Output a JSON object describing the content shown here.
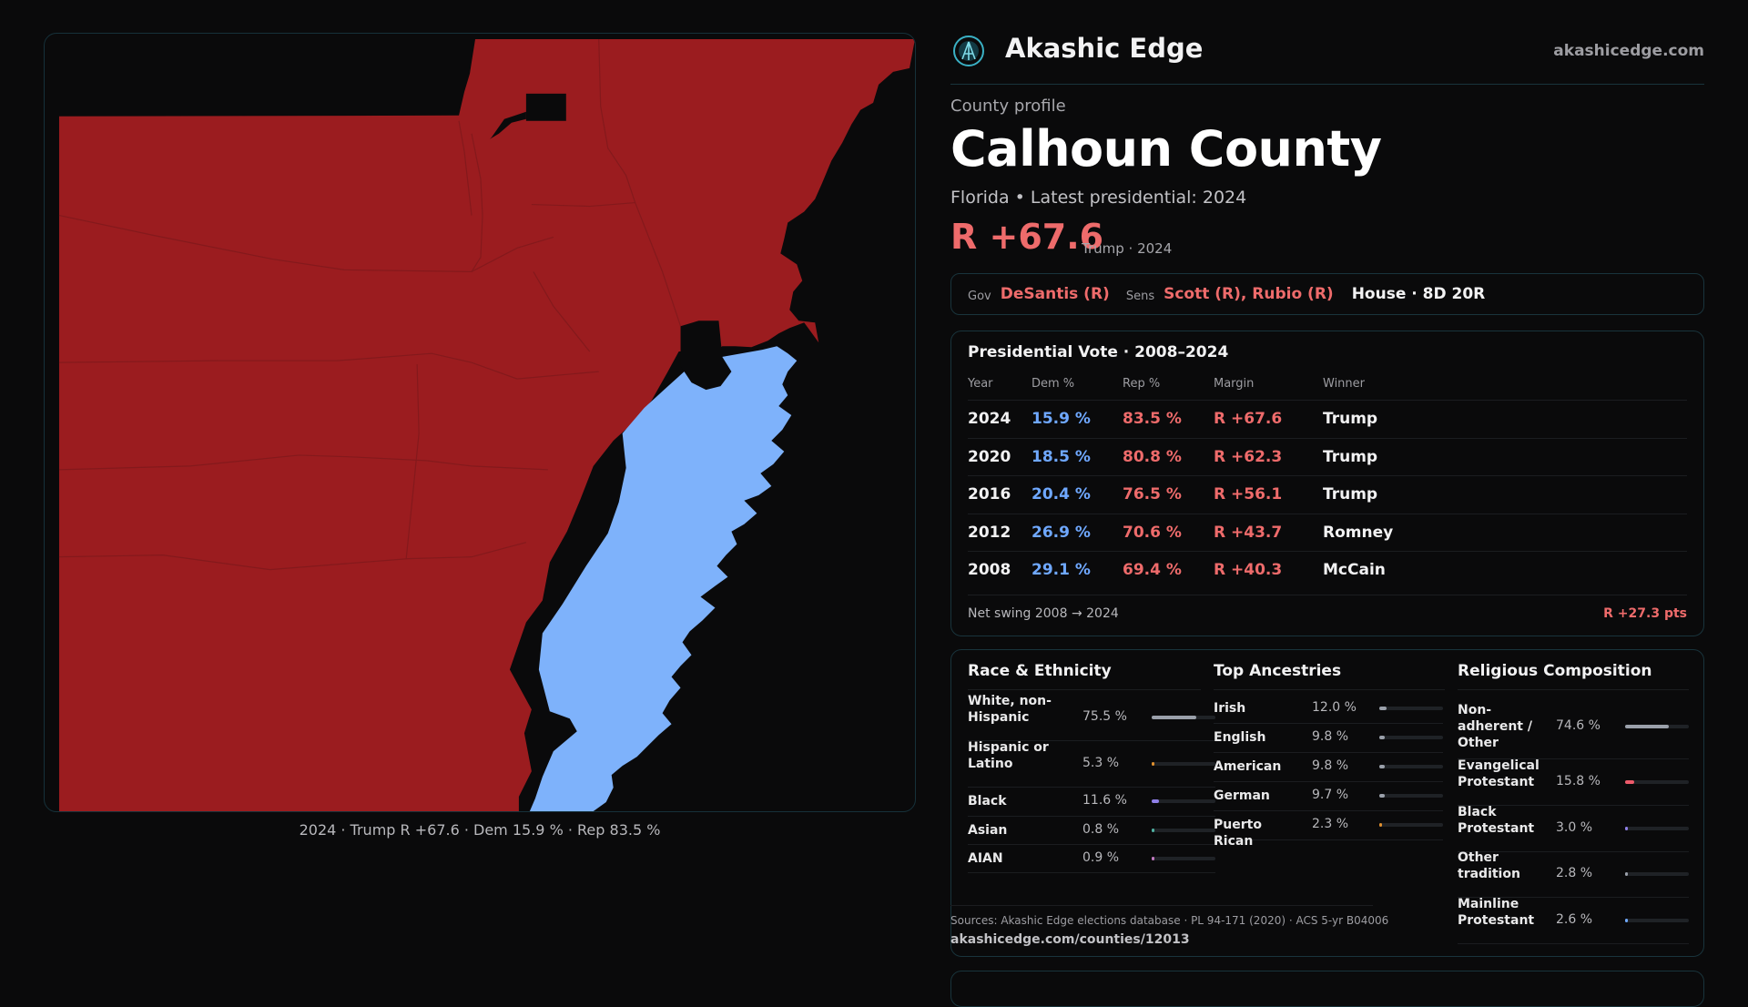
{
  "brand": {
    "name": "Akashic Edge",
    "site": "akashicedge.com"
  },
  "profile": {
    "kicker": "County profile",
    "county": "Calhoun County",
    "subtitle": "Florida • Latest presidential: 2024",
    "margin": "R +67.6",
    "margin_note": "Trump · 2024"
  },
  "officials": {
    "gov_label": "Gov",
    "gov": "DeSantis (R)",
    "sens_label": "Sens",
    "sens": "Scott (R), Rubio (R)",
    "house": "House · 8D 20R"
  },
  "map": {
    "caption": "2024 · Trump R +67.6 · Dem 15.9 % · Rep 83.5 %",
    "colors": {
      "rep": "#9b1c1f",
      "dem": "#7eb2fb",
      "background": "#0a0a0b"
    }
  },
  "presidential": {
    "title": "Presidential Vote · 2008–2024",
    "headers": {
      "year": "Year",
      "dem": "Dem %",
      "rep": "Rep %",
      "margin": "Margin",
      "winner": "Winner"
    },
    "rows": [
      {
        "year": "2024",
        "dem": "15.9 %",
        "rep": "83.5 %",
        "margin": "R +67.6",
        "winner": "Trump"
      },
      {
        "year": "2020",
        "dem": "18.5 %",
        "rep": "80.8 %",
        "margin": "R +62.3",
        "winner": "Trump"
      },
      {
        "year": "2016",
        "dem": "20.4 %",
        "rep": "76.5 %",
        "margin": "R +56.1",
        "winner": "Trump"
      },
      {
        "year": "2012",
        "dem": "26.9 %",
        "rep": "70.6 %",
        "margin": "R +43.7",
        "winner": "Romney"
      },
      {
        "year": "2008",
        "dem": "29.1 %",
        "rep": "69.4 %",
        "margin": "R +40.3",
        "winner": "McCain"
      }
    ],
    "swing_label": "Net swing 2008 → 2024",
    "swing_value": "R +27.3 pts"
  },
  "race": {
    "title": "Race & Ethnicity",
    "items": [
      {
        "label": "White, non-Hispanic",
        "pct": "75.5 %",
        "value": 75.5,
        "color": "#9aa0aa"
      },
      {
        "label": "Hispanic or Latino",
        "pct": "5.3 %",
        "value": 5.3,
        "color": "#e0902f"
      },
      {
        "label": "Black",
        "pct": "11.6 %",
        "value": 11.6,
        "color": "#8f7fe8"
      },
      {
        "label": "Asian",
        "pct": "0.8 %",
        "value": 0.8,
        "color": "#4fb0a0"
      },
      {
        "label": "AIAN",
        "pct": "0.9 %",
        "value": 0.9,
        "color": "#c27ac2"
      }
    ]
  },
  "ancestry": {
    "title": "Top Ancestries",
    "items": [
      {
        "label": "Irish",
        "pct": "12.0 %",
        "value": 12.0,
        "color": "#9aa0aa"
      },
      {
        "label": "English",
        "pct": "9.8 %",
        "value": 9.8,
        "color": "#9aa0aa"
      },
      {
        "label": "American",
        "pct": "9.8 %",
        "value": 9.8,
        "color": "#9aa0aa"
      },
      {
        "label": "German",
        "pct": "9.7 %",
        "value": 9.7,
        "color": "#9aa0aa"
      },
      {
        "label": "Puerto Rican",
        "pct": "2.3 %",
        "value": 2.3,
        "color": "#e0902f"
      }
    ]
  },
  "religion": {
    "title": "Religious Composition",
    "items": [
      {
        "label": "Non-adherent / Other",
        "pct": "74.6 %",
        "value": 74.6,
        "color": "#9aa0aa"
      },
      {
        "label": "Evangelical Protestant",
        "pct": "15.8 %",
        "value": 15.8,
        "color": "#ee5a6a"
      },
      {
        "label": "Black Protestant",
        "pct": "3.0 %",
        "value": 3.0,
        "color": "#8f7fe8"
      },
      {
        "label": "Other tradition",
        "pct": "2.8 %",
        "value": 2.8,
        "color": "#9aa0aa"
      },
      {
        "label": "Mainline Protestant",
        "pct": "2.6 %",
        "value": 2.6,
        "color": "#6fa8ff"
      }
    ]
  },
  "sources": {
    "text": "Sources: Akashic Edge elections database · PL 94-171 (2020) · ACS 5-yr B04006",
    "url": "akashicedge.com/counties/12013"
  }
}
